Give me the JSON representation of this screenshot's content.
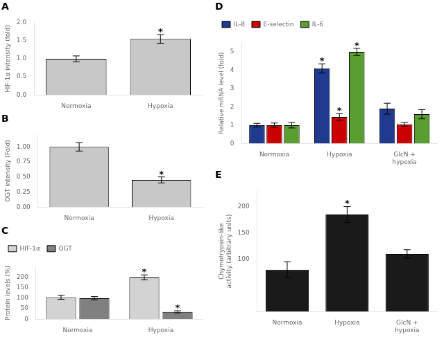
{
  "chart_data": [
    {
      "type": "bar",
      "title": "A",
      "categories": [
        "Normoxia",
        "Hypoxia"
      ],
      "values": [
        1.0,
        1.55
      ],
      "errors": [
        0.08,
        0.12
      ],
      "color": "#c8c8c8",
      "ylabel": "HIF-1α intensity (fold)",
      "ylim": [
        0,
        2.0
      ],
      "yticks": [
        {
          "value": 0,
          "label": "0.0"
        },
        0.5,
        {
          "value": 1.0,
          "label": "1.0"
        },
        1.5,
        {
          "value": 2.0,
          "label": "2.0"
        }
      ],
      "grid": false,
      "annotations": [
        {
          "text": "*",
          "category": "Hypoxia"
        }
      ]
    },
    {
      "type": "bar",
      "title": "B",
      "categories": [
        "Normoxia",
        "Hypoxia"
      ],
      "values": [
        1.0,
        0.45
      ],
      "errors": [
        0.07,
        0.05
      ],
      "color": "#c8c8c8",
      "ylabel": "OGT intensity (Fold)",
      "ylim": [
        0,
        1.2
      ],
      "yticks": [
        {
          "value": 0,
          "label": "0.00"
        },
        0.25,
        {
          "value": 0.5,
          "label": "0.50"
        },
        0.75,
        {
          "value": 1.0,
          "label": "1.00"
        }
      ],
      "grid": false,
      "annotations": [
        {
          "text": "*",
          "category": "Hypoxia"
        }
      ]
    },
    {
      "type": "bar",
      "title": "C",
      "categories": [
        "Normoxia",
        "Hypoxia"
      ],
      "series": [
        {
          "name": "HIF-1α",
          "color": "#d3d3d3",
          "values": [
            105,
            200
          ],
          "errors": [
            10,
            12
          ]
        },
        {
          "name": "OGT",
          "color": "#808080",
          "values": [
            100,
            35
          ],
          "errors": [
            8,
            5
          ]
        }
      ],
      "ylabel": "Protein levels (%)",
      "ylim": [
        0,
        250
      ],
      "yticks": [
        0,
        50,
        100,
        150,
        200
      ],
      "grid": false,
      "legend": "upper left",
      "annotations": [
        {
          "text": "*",
          "category": "Hypoxia",
          "series": "HIF-1α"
        },
        {
          "text": "*",
          "category": "Hypoxia",
          "series": "OGT"
        }
      ]
    },
    {
      "type": "bar",
      "title": "D",
      "categories": [
        "Normoxia",
        "Hypoxia",
        "GlcN +\nhypoxia"
      ],
      "series": [
        {
          "name": "IL-8",
          "color": "#1f3a8f",
          "values": [
            1.0,
            4.1,
            1.9
          ],
          "errors": [
            0.1,
            0.25,
            0.3
          ]
        },
        {
          "name": "E-selectin",
          "color": "#cc0000",
          "values": [
            1.0,
            1.45,
            1.05
          ],
          "errors": [
            0.12,
            0.18,
            0.1
          ]
        },
        {
          "name": "IL-6",
          "color": "#5a9e2f",
          "values": [
            1.0,
            5.0,
            1.6
          ],
          "errors": [
            0.15,
            0.2,
            0.25
          ]
        }
      ],
      "ylabel": "Relative mRNA level (fold)",
      "ylim": [
        0,
        5.5
      ],
      "yticks": [
        0,
        1,
        2,
        3,
        4,
        5
      ],
      "grid": false,
      "legend": "upper left",
      "annotations": [
        {
          "text": "*",
          "category": "Hypoxia",
          "series": "IL-8"
        },
        {
          "text": "*",
          "category": "Hypoxia",
          "series": "E-selectin"
        },
        {
          "text": "*",
          "category": "Hypoxia",
          "series": "IL-6"
        }
      ]
    },
    {
      "type": "bar",
      "title": "E",
      "categories": [
        "Normoxia",
        "Hypoxia",
        "GlcN +\nhypoxia"
      ],
      "values": [
        80,
        185,
        110
      ],
      "errors": [
        15,
        15,
        8
      ],
      "color": "#1a1a1a",
      "ylabel": "Chymotrypsin-like\nactivity (arbitrary units)",
      "ylim": [
        0,
        230
      ],
      "yticks": [
        100,
        150,
        200
      ],
      "grid": false,
      "annotations": [
        {
          "text": "*",
          "category": "Hypoxia"
        }
      ]
    }
  ]
}
